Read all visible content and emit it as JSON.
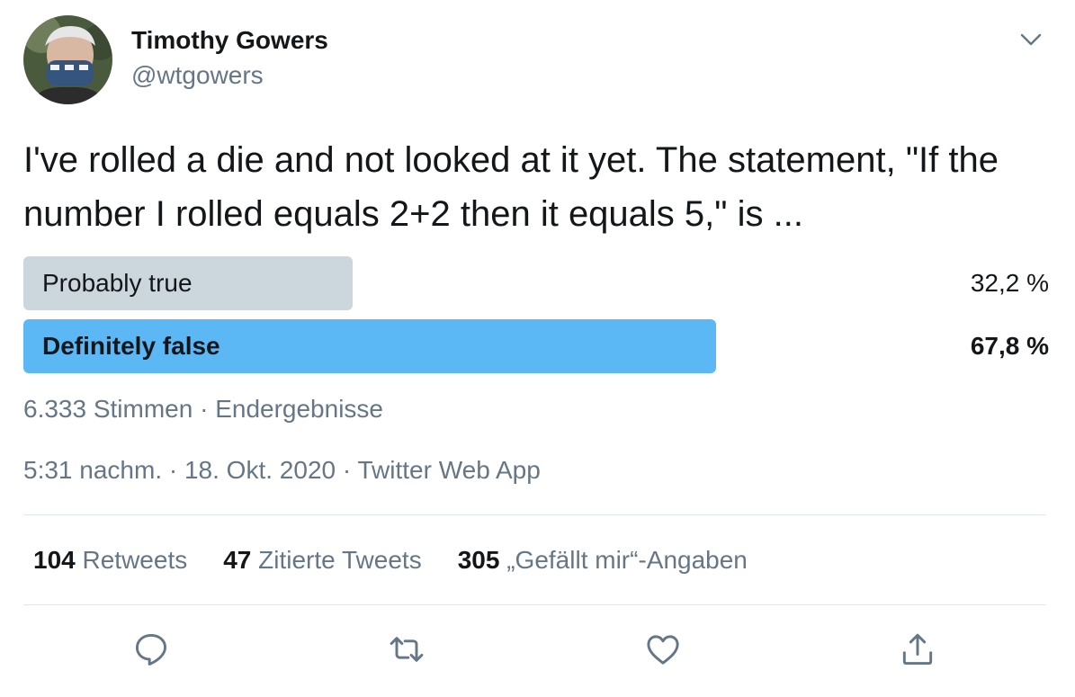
{
  "author": {
    "name": "Timothy Gowers",
    "handle": "@wtgowers"
  },
  "tweet": {
    "text": "I've rolled a die and not looked at it yet. The statement, \"If the number I rolled equals 2+2 then it equals 5,\" is ..."
  },
  "poll": {
    "options": [
      {
        "label": "Probably true",
        "percent_text": "32,2 %",
        "share": 0.322,
        "winner": false
      },
      {
        "label": "Definitely false",
        "percent_text": "67,8 %",
        "share": 0.678,
        "winner": true
      }
    ],
    "summary": "6.333 Stimmen · Endergebnisse"
  },
  "timestamp": "5:31 nachm. · 18. Okt. 2020 · Twitter Web App",
  "stats": {
    "retweets": {
      "count": "104",
      "label": "Retweets"
    },
    "quotes": {
      "count": "47",
      "label": "Zitierte Tweets"
    },
    "likes": {
      "count": "305",
      "label": "„Gefällt mir“-Angaben"
    }
  },
  "actions": {
    "icons": [
      "reply-icon",
      "retweet-icon",
      "like-icon",
      "share-icon"
    ]
  },
  "colors": {
    "winner_bar": "#5bb8f5",
    "other_bar": "#ccd6dd",
    "secondary_text": "#657786",
    "icon": "#657786"
  }
}
